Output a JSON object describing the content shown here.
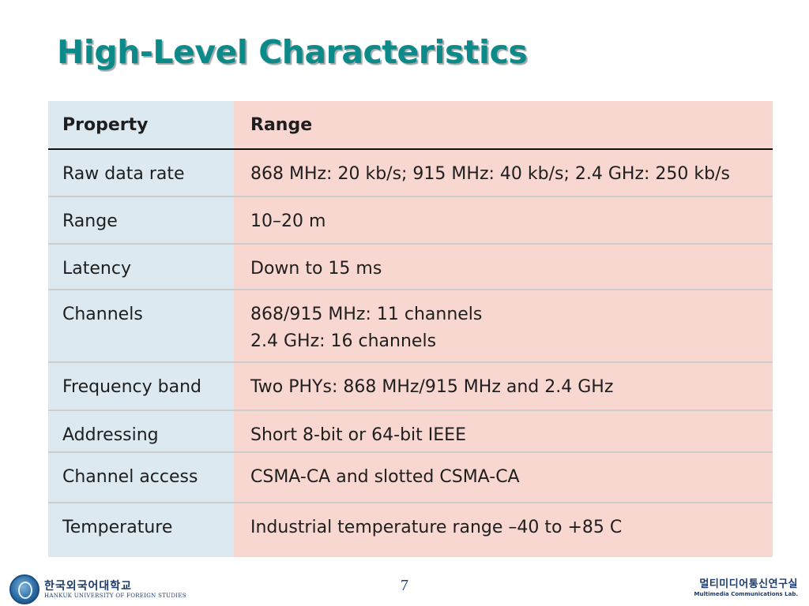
{
  "slide": {
    "title": "High-Level Characteristics",
    "page_number": "7"
  },
  "table": {
    "headers": {
      "property": "Property",
      "range": "Range"
    },
    "rows": [
      {
        "property": "Raw data rate",
        "range": [
          "868 MHz: 20 kb/s; 915 MHz: 40 kb/s; 2.4 GHz: 250 kb/s"
        ]
      },
      {
        "property": "Range",
        "range": [
          "10–20 m"
        ]
      },
      {
        "property": "Latency",
        "range": [
          "Down to 15 ms"
        ]
      },
      {
        "property": "Channels",
        "range": [
          "868/915 MHz: 11 channels",
          "2.4 GHz: 16 channels"
        ]
      },
      {
        "property": "Frequency band",
        "range": [
          "Two PHYs: 868 MHz/915 MHz and 2.4 GHz"
        ]
      },
      {
        "property": "Addressing",
        "range": [
          "Short 8-bit or 64-bit IEEE"
        ]
      },
      {
        "property": "Channel access",
        "range": [
          "CSMA-CA and slotted CSMA-CA"
        ]
      },
      {
        "property": "Temperature",
        "range": [
          "Industrial temperature range –40 to +85 C"
        ]
      }
    ]
  },
  "footer": {
    "university_name_ko": "한국외국어대학교",
    "university_name_en": "HANKUK UNIVERSITY OF FOREIGN STUDIES",
    "lab_name_ko": "멀티미디어통신연구실",
    "lab_name_en": "Multimedia Communications Lab."
  }
}
